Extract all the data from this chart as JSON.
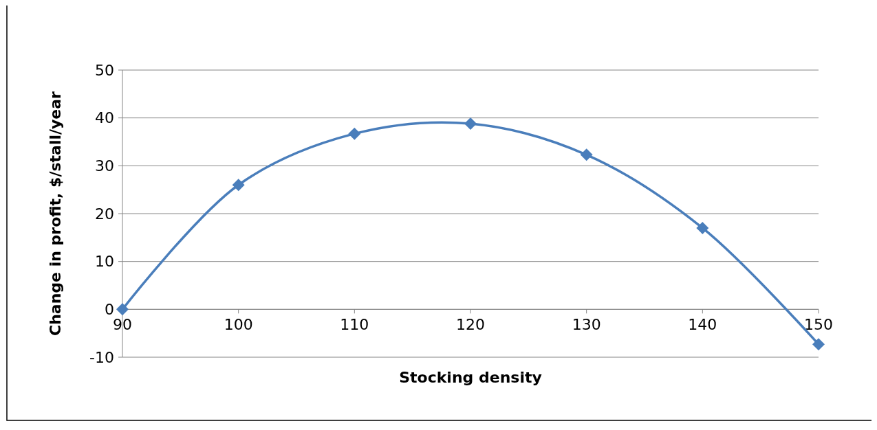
{
  "chart_data": {
    "type": "line",
    "xlabel": "Stocking density",
    "ylabel": "Change in profit, $/stall/year",
    "x": [
      90,
      100,
      110,
      120,
      130,
      140,
      150
    ],
    "series": [
      {
        "color": "#4a7ebb",
        "values": [
          0,
          26,
          36.7,
          38.8,
          32.3,
          17,
          -7.3
        ]
      }
    ],
    "xlim": [
      90,
      150
    ],
    "xticks": [
      90,
      100,
      110,
      120,
      130,
      140,
      150
    ],
    "ylim": [
      -10,
      50
    ],
    "yticks": [
      -10,
      0,
      10,
      20,
      30,
      40,
      50
    ],
    "grid": "y",
    "marker": "diamond",
    "line_style": "solid"
  }
}
